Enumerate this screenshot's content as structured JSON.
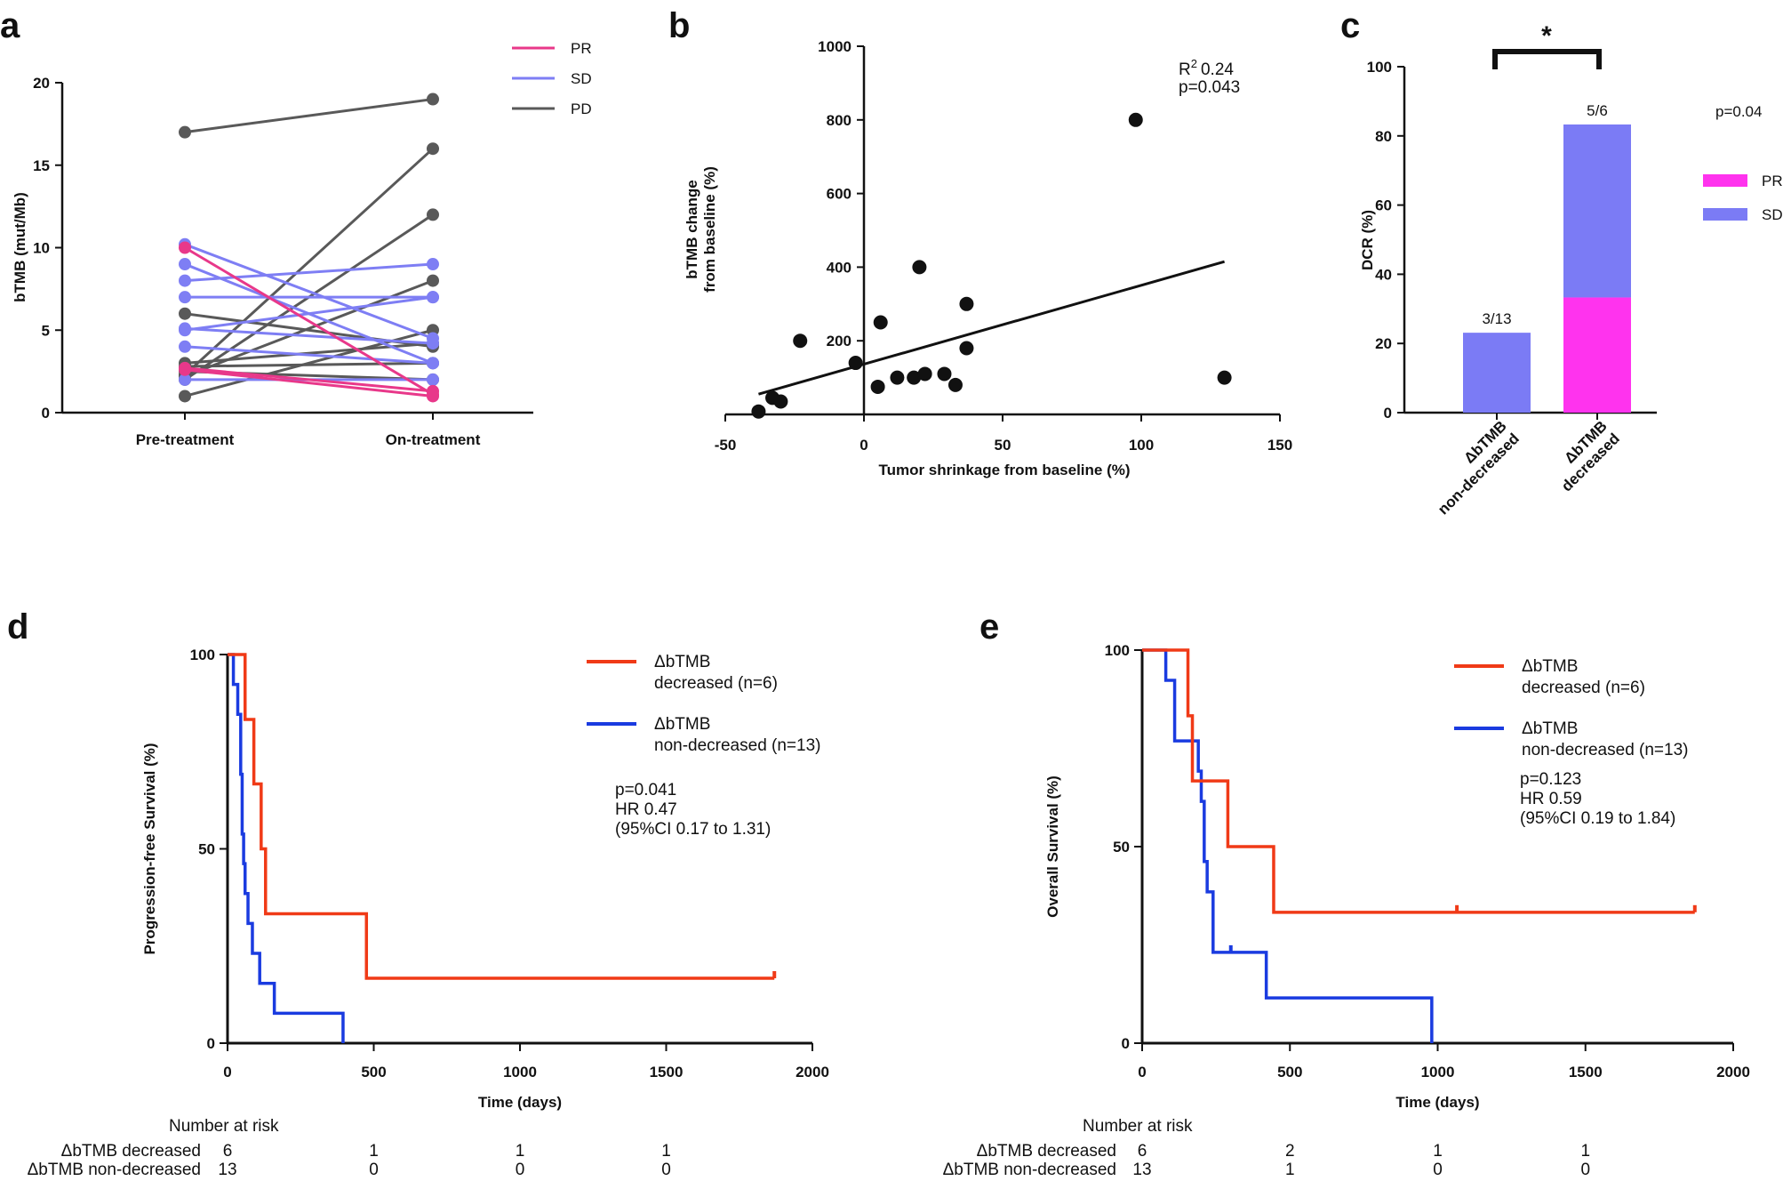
{
  "panels": {
    "a": "a",
    "b": "b",
    "c": "c",
    "d": "d",
    "e": "e"
  },
  "colors": {
    "pr": "#e8388a",
    "sd": "#7e7ef4",
    "pd": "#595959",
    "pr_bar": "#ff33ee",
    "sd_bar": "#7b7bf5",
    "km_decreased": "#f03a17",
    "km_nondecreased": "#1a3be0"
  },
  "chart_data": [
    {
      "id": "a",
      "type": "line",
      "ylabel": "bTMB (mut/Mb)",
      "ylim": [
        0,
        20
      ],
      "yticks": [
        0,
        5,
        10,
        15,
        20
      ],
      "categories": [
        "Pre-treatment",
        "On-treatment"
      ],
      "legend": [
        {
          "key": "pr",
          "label": "PR"
        },
        {
          "key": "sd",
          "label": "SD"
        },
        {
          "key": "pd",
          "label": "PD"
        }
      ],
      "series": [
        {
          "group": "pd",
          "values": [
            17,
            19
          ]
        },
        {
          "group": "pd",
          "values": [
            6,
            4
          ]
        },
        {
          "group": "pd",
          "values": [
            2.3,
            16
          ]
        },
        {
          "group": "pd",
          "values": [
            2,
            12
          ]
        },
        {
          "group": "pd",
          "values": [
            2.2,
            8
          ]
        },
        {
          "group": "pd",
          "values": [
            1,
            5
          ]
        },
        {
          "group": "pd",
          "values": [
            2.8,
            3
          ]
        },
        {
          "group": "pd",
          "values": [
            2.5,
            2
          ]
        },
        {
          "group": "pd",
          "values": [
            3,
            4.2
          ]
        },
        {
          "group": "sd",
          "values": [
            10.2,
            4.5
          ]
        },
        {
          "group": "sd",
          "values": [
            9,
            3
          ]
        },
        {
          "group": "sd",
          "values": [
            8,
            9
          ]
        },
        {
          "group": "sd",
          "values": [
            7,
            7
          ]
        },
        {
          "group": "sd",
          "values": [
            5,
            7
          ]
        },
        {
          "group": "sd",
          "values": [
            5.1,
            4.2
          ]
        },
        {
          "group": "sd",
          "values": [
            4,
            3
          ]
        },
        {
          "group": "sd",
          "values": [
            2,
            2
          ]
        },
        {
          "group": "pr",
          "values": [
            10,
            1.1
          ]
        },
        {
          "group": "pr",
          "values": [
            2.7,
            1.3
          ]
        },
        {
          "group": "pr",
          "values": [
            2.6,
            1
          ]
        }
      ]
    },
    {
      "id": "b",
      "type": "scatter",
      "xlabel": "Tumor shrinkage from baseline (%)",
      "ylabel_lines": [
        "bTMB change",
        "from baseline (%)"
      ],
      "xlim": [
        -50,
        150
      ],
      "ylim": [
        0,
        1000
      ],
      "xticks": [
        -50,
        0,
        50,
        100,
        150
      ],
      "yticks": [
        200,
        400,
        600,
        800,
        1000
      ],
      "points": [
        [
          -38,
          8
        ],
        [
          -33,
          45
        ],
        [
          -30,
          35
        ],
        [
          -23,
          200
        ],
        [
          -3,
          140
        ],
        [
          5,
          75
        ],
        [
          6,
          250
        ],
        [
          12,
          100
        ],
        [
          18,
          100
        ],
        [
          20,
          400
        ],
        [
          22,
          110
        ],
        [
          29,
          110
        ],
        [
          33,
          80
        ],
        [
          37,
          300
        ],
        [
          37,
          180
        ],
        [
          98,
          800
        ],
        [
          130,
          100
        ]
      ],
      "fit": {
        "x": [
          -38,
          130
        ],
        "y": [
          55,
          415
        ]
      },
      "stats": {
        "r2_label": "R",
        "r2_sup": "2",
        "r2_value": "0.24",
        "p": "p=0.043"
      }
    },
    {
      "id": "c",
      "type": "bar",
      "ylabel": "DCR (%)",
      "ylim": [
        0,
        100
      ],
      "yticks": [
        0,
        20,
        40,
        60,
        80,
        100
      ],
      "categories": [
        [
          "ΔbTMB",
          "non-decreased"
        ],
        [
          "ΔbTMB",
          "decreased"
        ]
      ],
      "stacks": [
        {
          "pr": 0,
          "sd": 23.1,
          "label": "3/13"
        },
        {
          "pr": 33.3,
          "sd": 50,
          "label": "5/6"
        }
      ],
      "legend": [
        {
          "key": "pr",
          "label": "PR"
        },
        {
          "key": "sd",
          "label": "SD"
        }
      ],
      "p_value": "p=0.04",
      "significance": "*"
    },
    {
      "id": "d",
      "type": "line",
      "subtype": "kaplan-meier",
      "xlabel": "Time (days)",
      "ylabel": "Progression-free Survival (%)",
      "xlim": [
        0,
        2000
      ],
      "ylim": [
        0,
        100
      ],
      "xticks": [
        0,
        500,
        1000,
        1500,
        2000
      ],
      "yticks": [
        0,
        50,
        100
      ],
      "series": [
        {
          "key": "km_decreased",
          "name_lines": [
            "ΔbTMB",
            "decreased (n=6)"
          ],
          "x": [
            0,
            60,
            90,
            115,
            130,
            475,
            1870
          ],
          "y": [
            100,
            83.3,
            66.7,
            50,
            33.3,
            16.7,
            16.7
          ],
          "censor": [
            1870
          ]
        },
        {
          "key": "km_nondecreased",
          "name_lines": [
            "ΔbTMB",
            "non-decreased (n=13)"
          ],
          "x": [
            0,
            20,
            35,
            45,
            50,
            55,
            60,
            70,
            85,
            110,
            160,
            395
          ],
          "y": [
            100,
            92.3,
            84.6,
            69.2,
            53.8,
            46.2,
            38.5,
            30.8,
            23.1,
            15.4,
            7.7,
            0
          ],
          "censor": []
        }
      ],
      "stats": [
        "p=0.041",
        "HR 0.47",
        "(95%CI 0.17 to 1.31)"
      ],
      "risk_table": {
        "title": "Number at risk",
        "rows": [
          {
            "label": "ΔbTMB decreased",
            "values": [
              "6",
              "1",
              "1",
              "1"
            ]
          },
          {
            "label": "ΔbTMB non-decreased",
            "values": [
              "13",
              "0",
              "0",
              "0"
            ]
          }
        ]
      }
    },
    {
      "id": "e",
      "type": "line",
      "subtype": "kaplan-meier",
      "xlabel": "Time (days)",
      "ylabel": "Overall Survival  (%)",
      "xlim": [
        0,
        2000
      ],
      "ylim": [
        0,
        100
      ],
      "xticks": [
        0,
        500,
        1000,
        1500,
        2000
      ],
      "yticks": [
        0,
        50,
        100
      ],
      "series": [
        {
          "key": "km_decreased",
          "name_lines": [
            "ΔbTMB",
            "decreased (n=6)"
          ],
          "x": [
            0,
            155,
            170,
            290,
            445,
            1870
          ],
          "y": [
            100,
            83.3,
            66.7,
            50,
            33.3,
            33.3
          ],
          "censor": [
            1065,
            1870
          ]
        },
        {
          "key": "km_nondecreased",
          "name_lines": [
            "ΔbTMB",
            "non-decreased (n=13)"
          ],
          "x": [
            0,
            80,
            110,
            190,
            200,
            210,
            220,
            240,
            420,
            980
          ],
          "y": [
            100,
            92.3,
            76.9,
            69.2,
            61.5,
            46.2,
            38.5,
            23.1,
            11.5,
            0
          ],
          "censor": [
            300
          ]
        }
      ],
      "stats": [
        "p=0.123",
        "HR 0.59",
        "(95%CI 0.19 to 1.84)"
      ],
      "risk_table": {
        "title": "Number at risk",
        "rows": [
          {
            "label": "ΔbTMB decreased",
            "values": [
              "6",
              "2",
              "1",
              "1"
            ]
          },
          {
            "label": "ΔbTMB non-decreased",
            "values": [
              "13",
              "1",
              "0",
              "0"
            ]
          }
        ]
      }
    }
  ]
}
